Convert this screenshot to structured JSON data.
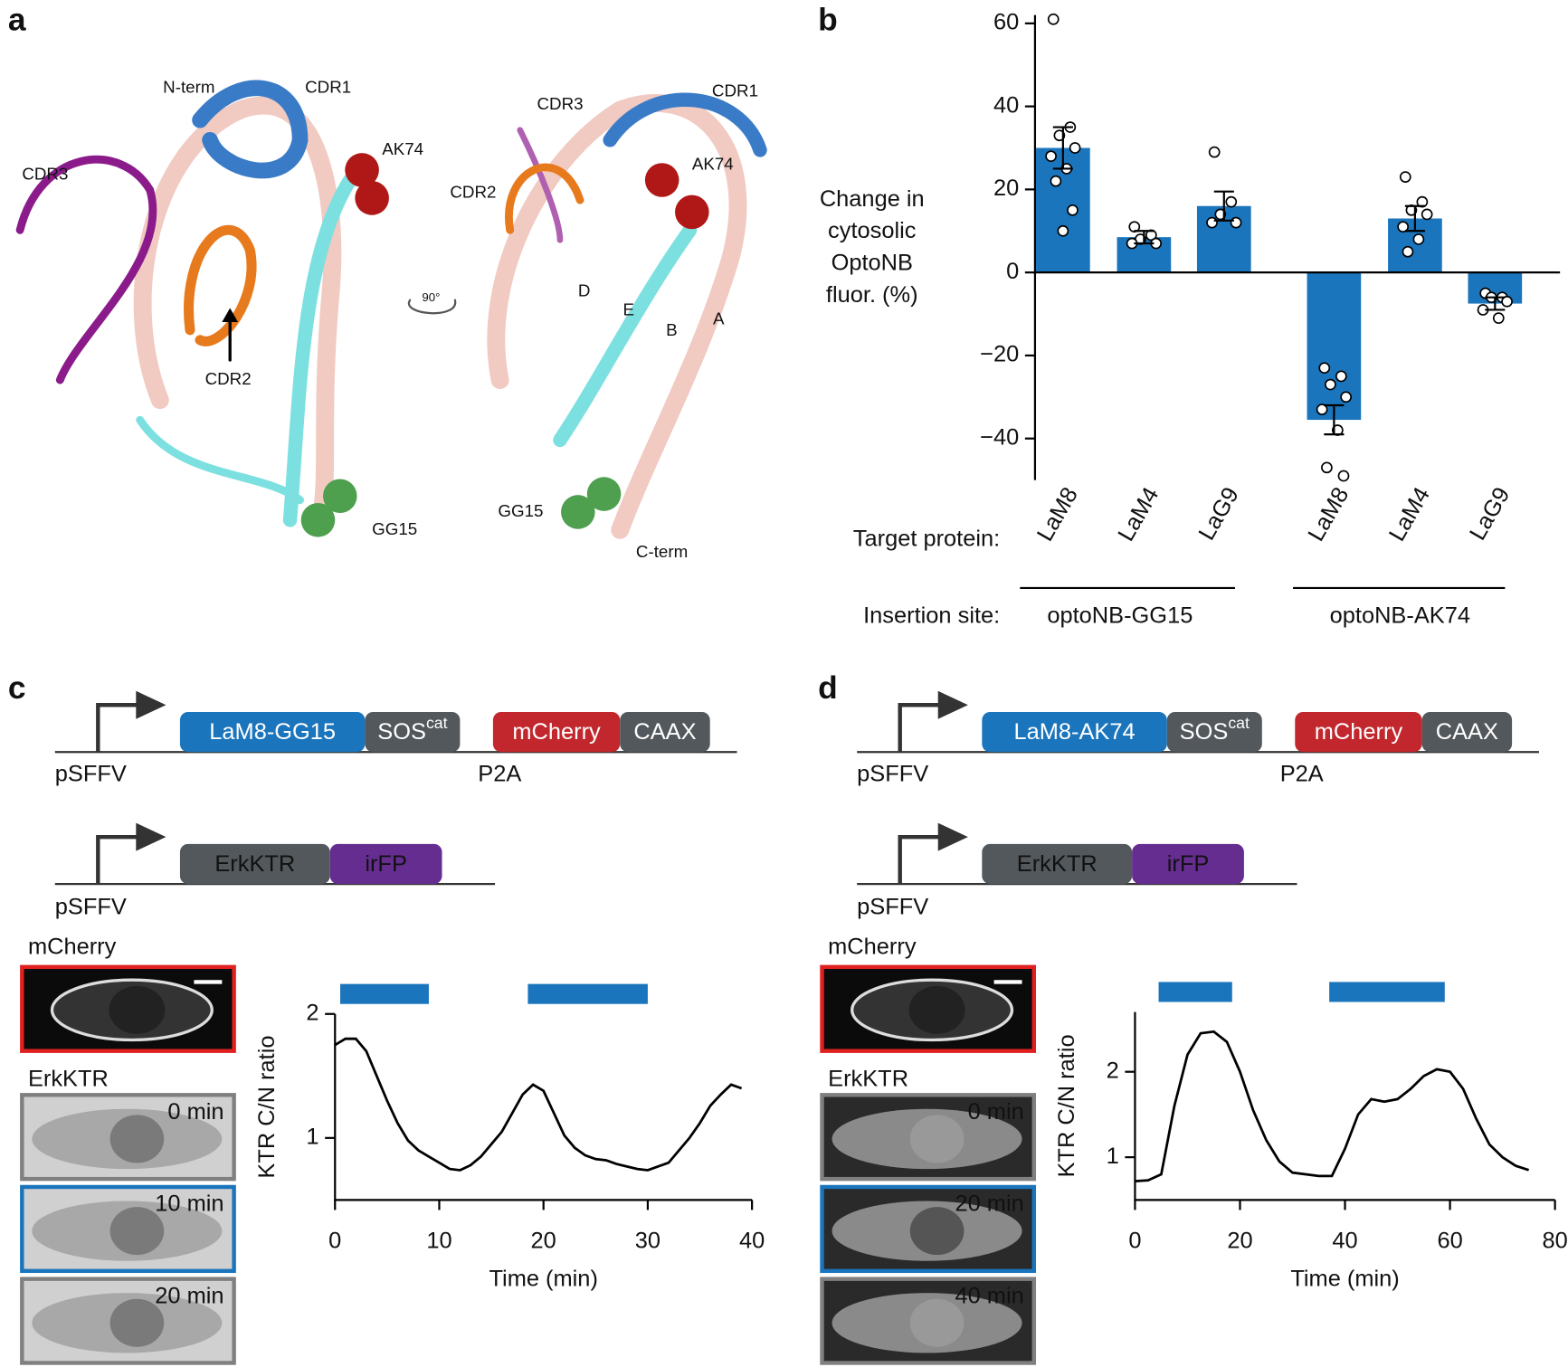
{
  "panel_labels": [
    "a",
    "b",
    "c",
    "d"
  ],
  "structure": {
    "left": [
      "N-term",
      "CDR1",
      "CDR3",
      "AK74",
      "CDR2",
      "GG15"
    ],
    "rotation": "90°",
    "right": [
      "CDR3",
      "CDR1",
      "AK74",
      "CDR2",
      "D",
      "E",
      "B",
      "A",
      "GG15",
      "C-term"
    ]
  },
  "chart_data": [
    {
      "type": "bar",
      "categories": [
        "LaM8",
        "LaM4",
        "LaG9",
        "LaM8",
        "LaM4",
        "LaG9"
      ],
      "values": [
        30,
        8.5,
        16,
        -35.5,
        13,
        -7.5
      ],
      "errors": [
        5,
        1.5,
        3.5,
        3.5,
        3,
        1.5
      ],
      "points": [
        [
          61,
          35,
          33,
          30,
          28,
          25,
          22,
          15,
          10
        ],
        [
          11,
          9,
          8,
          7,
          7
        ],
        [
          29,
          17,
          14,
          12,
          12
        ],
        [
          -23,
          -25,
          -27,
          -30,
          -33,
          -38,
          -47,
          -49
        ],
        [
          23,
          17,
          15,
          14,
          11,
          8,
          5
        ],
        [
          -5,
          -6,
          -6,
          -7,
          -9,
          -11
        ]
      ],
      "color": "#1b75bc",
      "ylim": [
        -50,
        62
      ],
      "yticks": [
        {
          "value": -40,
          "label": "−40"
        },
        {
          "value": -20,
          "label": "−20"
        },
        0,
        20,
        40,
        60
      ],
      "y_label": [
        "Change in",
        "cytosolic",
        "OptoNB",
        "fluor. (%)"
      ],
      "x_label": "Target protein:",
      "groups_label": "Insertion site:",
      "groups": [
        "optoNB-GG15",
        "optoNB-AK74"
      ]
    },
    {
      "type": "line",
      "x": [
        0,
        1,
        2,
        3,
        4,
        5,
        6,
        7,
        8,
        9,
        10,
        11,
        12,
        13,
        14,
        15,
        16,
        17,
        18,
        19,
        20,
        21,
        22,
        23,
        24,
        25,
        26,
        27,
        28,
        29,
        30,
        31,
        32,
        33,
        34,
        35,
        36,
        37,
        38,
        39
      ],
      "values": [
        1.75,
        1.8,
        1.8,
        1.7,
        1.5,
        1.3,
        1.12,
        0.98,
        0.9,
        0.85,
        0.8,
        0.75,
        0.74,
        0.78,
        0.85,
        0.95,
        1.05,
        1.2,
        1.35,
        1.43,
        1.38,
        1.2,
        1.02,
        0.92,
        0.86,
        0.83,
        0.82,
        0.79,
        0.77,
        0.75,
        0.74,
        0.77,
        0.8,
        0.9,
        1.0,
        1.12,
        1.26,
        1.35,
        1.43,
        1.4
      ],
      "color": "#000000",
      "xlim": [
        0,
        40
      ],
      "xticks": [
        0,
        10,
        20,
        30,
        40
      ],
      "ylim": [
        0.5,
        2
      ],
      "yticks": [
        1,
        2
      ],
      "x_label": "Time (min)",
      "y_label": "KTR C/N ratio",
      "stimulation": [
        [
          0.5,
          9
        ],
        [
          18.5,
          30
        ]
      ],
      "stimulation_color": "#1b75bc"
    },
    {
      "type": "line",
      "x": [
        0,
        2.5,
        5,
        7.5,
        10,
        12.5,
        15,
        17.5,
        20,
        22.5,
        25,
        27.5,
        30,
        32.5,
        35,
        37.5,
        40,
        42.5,
        45,
        47.5,
        50,
        52.5,
        55,
        57.5,
        60,
        62.5,
        65,
        67.5,
        70,
        72.5,
        75
      ],
      "values": [
        0.72,
        0.73,
        0.8,
        1.6,
        2.2,
        2.45,
        2.47,
        2.35,
        2.0,
        1.55,
        1.2,
        0.95,
        0.82,
        0.8,
        0.78,
        0.78,
        1.1,
        1.5,
        1.68,
        1.65,
        1.68,
        1.8,
        1.95,
        2.03,
        2.0,
        1.8,
        1.45,
        1.15,
        1.0,
        0.9,
        0.85
      ],
      "color": "#000000",
      "xlim": [
        0,
        80
      ],
      "xticks": [
        0,
        20,
        40,
        60,
        80
      ],
      "ylim": [
        0.5,
        2.7
      ],
      "yticks": [
        1,
        2
      ],
      "x_label": "Time (min)",
      "y_label": "KTR C/N ratio",
      "stimulation": [
        [
          4.5,
          18.5
        ],
        [
          37,
          59
        ]
      ],
      "stimulation_color": "#1b75bc"
    }
  ],
  "constructs": [
    {
      "promoter": "pSFFV",
      "parts": [
        {
          "name": "LaM8-GG15",
          "color": "#1b75bc"
        },
        {
          "name": "SOS",
          "sup": "cat",
          "color": "#53585c"
        },
        {
          "name": "mCherry",
          "color": "#c1272d"
        },
        {
          "name": "CAAX",
          "color": "#53585c"
        }
      ],
      "linker": "P2A",
      "reporter": {
        "promoter": "pSFFV",
        "parts": [
          {
            "name": "ErkKTR",
            "color": "#53585c"
          },
          {
            "name": "irFP",
            "color": "#662d91"
          }
        ]
      }
    },
    {
      "promoter": "pSFFV",
      "parts": [
        {
          "name": "LaM8-AK74",
          "color": "#1b75bc"
        },
        {
          "name": "SOS",
          "sup": "cat",
          "color": "#53585c"
        },
        {
          "name": "mCherry",
          "color": "#c1272d"
        },
        {
          "name": "CAAX",
          "color": "#53585c"
        }
      ],
      "linker": "P2A",
      "reporter": {
        "promoter": "pSFFV",
        "parts": [
          {
            "name": "ErkKTR",
            "color": "#53585c"
          },
          {
            "name": "irFP",
            "color": "#662d91"
          }
        ]
      }
    }
  ],
  "micrographs": [
    {
      "channel1": "mCherry",
      "channel2": "ErkKTR",
      "times": [
        "0 min",
        "10 min",
        "20 min"
      ]
    },
    {
      "channel1": "mCherry",
      "channel2": "ErkKTR",
      "times": [
        "0 min",
        "20 min",
        "40 min"
      ]
    }
  ]
}
